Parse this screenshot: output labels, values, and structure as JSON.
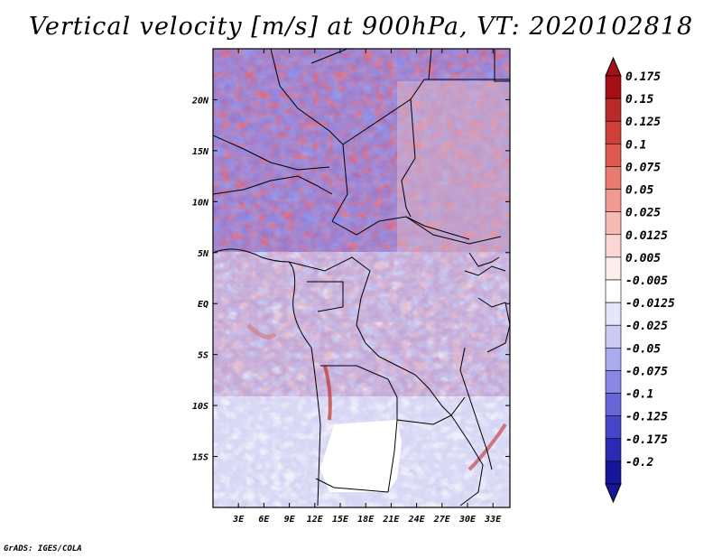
{
  "title": "Vertical velocity [m/s] at 900hPa, VT: 2020102818",
  "footer": "GrADS: IGES/COLA",
  "map": {
    "lon_range": [
      0,
      35
    ],
    "lat_range": [
      -20,
      25
    ],
    "lon_ticks": [
      {
        "value": 3,
        "label": "3E"
      },
      {
        "value": 6,
        "label": "6E"
      },
      {
        "value": 9,
        "label": "9E"
      },
      {
        "value": 12,
        "label": "12E"
      },
      {
        "value": 15,
        "label": "15E"
      },
      {
        "value": 18,
        "label": "18E"
      },
      {
        "value": 21,
        "label": "21E"
      },
      {
        "value": 24,
        "label": "24E"
      },
      {
        "value": 27,
        "label": "27E"
      },
      {
        "value": 30,
        "label": "30E"
      },
      {
        "value": 33,
        "label": "33E"
      }
    ],
    "lat_ticks": [
      {
        "value": 20,
        "label": "20N"
      },
      {
        "value": 15,
        "label": "15N"
      },
      {
        "value": 10,
        "label": "10N"
      },
      {
        "value": 5,
        "label": "5N"
      },
      {
        "value": 0,
        "label": "EQ"
      },
      {
        "value": -5,
        "label": "5S"
      },
      {
        "value": -10,
        "label": "10S"
      },
      {
        "value": -15,
        "label": "15S"
      }
    ]
  },
  "colorbar": {
    "levels": [
      {
        "label": "0.175",
        "color": "#a50f15"
      },
      {
        "label": "0.15",
        "color": "#bb2a2a"
      },
      {
        "label": "0.125",
        "color": "#cf3f3a"
      },
      {
        "label": "0.1",
        "color": "#de5a50"
      },
      {
        "label": "0.075",
        "color": "#e87a70"
      },
      {
        "label": "0.05",
        "color": "#f09a90"
      },
      {
        "label": "0.025",
        "color": "#f7bab3"
      },
      {
        "label": "0.0125",
        "color": "#fbd6d2"
      },
      {
        "label": "0.005",
        "color": "#fdeeec"
      },
      {
        "label": "-0.005",
        "color": "#ffffff"
      },
      {
        "label": "-0.0125",
        "color": "#e6e6fa"
      },
      {
        "label": "-0.025",
        "color": "#cacaf5"
      },
      {
        "label": "-0.05",
        "color": "#aaaaee"
      },
      {
        "label": "-0.075",
        "color": "#8888e4"
      },
      {
        "label": "-0.1",
        "color": "#6666d8"
      },
      {
        "label": "-0.125",
        "color": "#4646c8"
      },
      {
        "label": "-0.175",
        "color": "#2a2ab2"
      },
      {
        "label": "-0.2",
        "color": "#16169a"
      }
    ],
    "top_color": "#a50f15",
    "bottom_color": "#16169a"
  }
}
